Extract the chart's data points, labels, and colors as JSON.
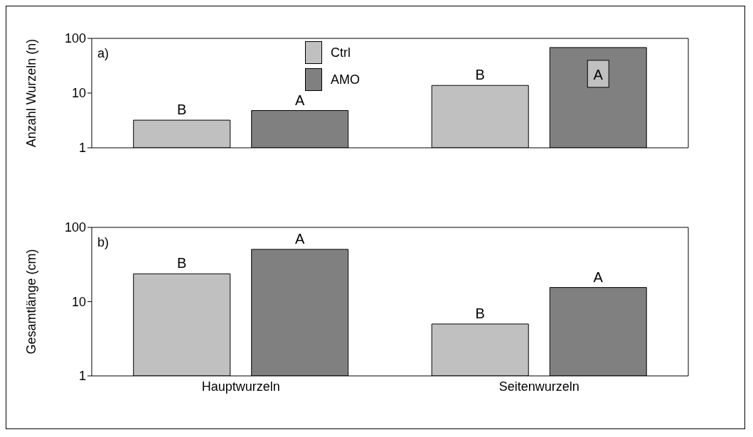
{
  "chart_data": [
    {
      "type": "bar",
      "title": "a)",
      "ylabel": "Anzahl  Wurzeln (n)",
      "categories": [
        null,
        null
      ],
      "log": true,
      "ylim": [
        1,
        100
      ],
      "yticks": [
        1,
        10,
        100
      ],
      "grid": false,
      "legend": "top",
      "tick_labels": "y",
      "series": [
        {
          "name": "Ctrl",
          "color": "#c0c0c0",
          "values": [
            3.2,
            13.8
          ],
          "value_labels": [
            "B",
            "B"
          ]
        },
        {
          "name": "AMO",
          "color": "#808080",
          "values": [
            4.8,
            68
          ],
          "value_labels": [
            "A",
            "A"
          ]
        }
      ]
    },
    {
      "type": "bar",
      "title": "b)",
      "ylabel": "Gesamtlänge (cm)",
      "categories": [
        "Hauptwurzeln",
        "Seitenwurzeln"
      ],
      "log": true,
      "ylim": [
        1,
        100
      ],
      "yticks": [
        1,
        10,
        100
      ],
      "grid": false,
      "legend": false,
      "series": [
        {
          "color": "#c0c0c0",
          "values": [
            23.7,
            5
          ],
          "value_labels": [
            "B",
            "B"
          ]
        },
        {
          "color": "#808080",
          "values": [
            50.6,
            15.5
          ],
          "value_labels": [
            "A",
            "A"
          ]
        }
      ]
    }
  ]
}
